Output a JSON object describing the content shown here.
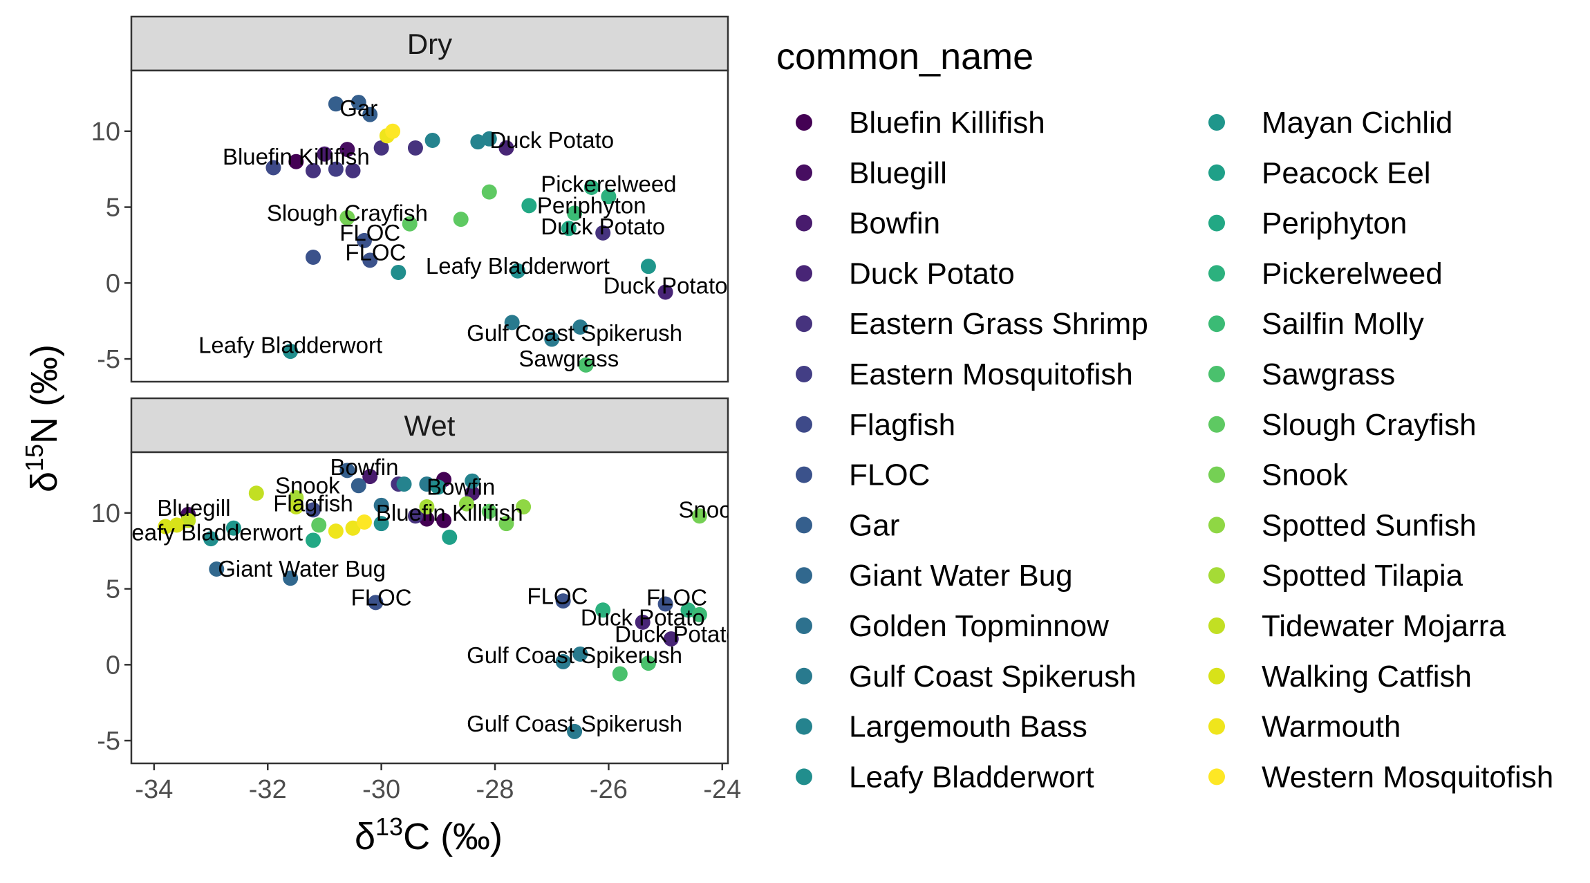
{
  "chart_data": {
    "type": "scatter",
    "title": "",
    "xlabel": "δ13C (‰)",
    "ylabel": "δ15N (‰)",
    "xlim": [
      -34.4,
      -23.9
    ],
    "ylim": [
      -6.5,
      14.0
    ],
    "x_ticks": [
      -34,
      -32,
      -30,
      -28,
      -26,
      -24
    ],
    "x_tick_labels": [
      "-34",
      "-32",
      "-30",
      "-28",
      "-26",
      "-24"
    ],
    "y_ticks": [
      -5,
      0,
      5,
      10
    ],
    "y_tick_labels": [
      "-5",
      "0",
      "5",
      "10"
    ],
    "grid": false,
    "legend_title": "common_name",
    "legend_position": "right",
    "colors": {
      "Bluefin Killifish": "#440154",
      "Bluegill": "#470E61",
      "Bowfin": "#481B6D",
      "Duck Potato": "#482576",
      "Eastern Grass Shrimp": "#46337E",
      "Eastern Mosquitofish": "#433E85",
      "Flagfish": "#3E4A89",
      "FLOC": "#3B528B",
      "Gar": "#355F8D",
      "Giant Water Bug": "#31688E",
      "Golden Topminnow": "#2D718E",
      "Gulf Coast Spikerush": "#297A8E",
      "Largemouth Bass": "#25838E",
      "Leafy Bladderwort": "#218E8D",
      "Mayan Cichlid": "#1F968B",
      "Peacock Eel": "#1FA088",
      "Periphyton": "#22A884",
      "Pickerelweed": "#2CB17E",
      "Sailfin Molly": "#3BBB75",
      "Sawgrass": "#4AC16D",
      "Slough Crayfish": "#5EC962",
      "Snook": "#75D054",
      "Spotted Sunfish": "#8FD744",
      "Spotted Tilapia": "#A5DB36",
      "Tidewater Mojarra": "#C2DF23",
      "Walking Catfish": "#D8E219",
      "Warmouth": "#EFE51C",
      "Western Mosquitofish": "#FDE725"
    },
    "legend_entries": [
      "Bluefin Killifish",
      "Bluegill",
      "Bowfin",
      "Duck Potato",
      "Eastern Grass Shrimp",
      "Eastern Mosquitofish",
      "Flagfish",
      "FLOC",
      "Gar",
      "Giant Water Bug",
      "Golden Topminnow",
      "Gulf Coast Spikerush",
      "Largemouth Bass",
      "Leafy Bladderwort",
      "Mayan Cichlid",
      "Peacock Eel",
      "Periphyton",
      "Pickerelweed",
      "Sailfin Molly",
      "Sawgrass",
      "Slough Crayfish",
      "Snook",
      "Spotted Sunfish",
      "Spotted Tilapia",
      "Tidewater Mojarra",
      "Walking Catfish",
      "Warmouth",
      "Western Mosquitofish"
    ],
    "panels": [
      {
        "strip": "Dry",
        "points": [
          {
            "x": -31.5,
            "y": 8.0,
            "species": "Bluefin Killifish"
          },
          {
            "x": -30.6,
            "y": 8.8,
            "species": "Bluegill"
          },
          {
            "x": -31.0,
            "y": 8.5,
            "species": "Bowfin"
          },
          {
            "x": -25.0,
            "y": -0.6,
            "species": "Duck Potato"
          },
          {
            "x": -27.8,
            "y": 8.9,
            "species": "Duck Potato"
          },
          {
            "x": -31.2,
            "y": 7.4,
            "species": "Eastern Grass Shrimp"
          },
          {
            "x": -30.5,
            "y": 7.4,
            "species": "Eastern Grass Shrimp"
          },
          {
            "x": -30.0,
            "y": 8.9,
            "species": "Eastern Grass Shrimp"
          },
          {
            "x": -29.4,
            "y": 8.9,
            "species": "Eastern Grass Shrimp"
          },
          {
            "x": -26.1,
            "y": 3.3,
            "species": "Eastern Grass Shrimp"
          },
          {
            "x": -30.8,
            "y": 7.5,
            "species": "Eastern Mosquitofish"
          },
          {
            "x": -31.9,
            "y": 7.6,
            "species": "Flagfish"
          },
          {
            "x": -30.3,
            "y": 2.8,
            "species": "FLOC"
          },
          {
            "x": -30.2,
            "y": 1.5,
            "species": "FLOC"
          },
          {
            "x": -31.2,
            "y": 1.7,
            "species": "FLOC"
          },
          {
            "x": -30.8,
            "y": 11.8,
            "species": "Gar"
          },
          {
            "x": -30.4,
            "y": 11.9,
            "species": "Gar"
          },
          {
            "x": -30.2,
            "y": 11.1,
            "species": "Gar"
          },
          {
            "x": -27.7,
            "y": -2.6,
            "species": "Gulf Coast Spikerush"
          },
          {
            "x": -26.5,
            "y": -2.9,
            "species": "Gulf Coast Spikerush"
          },
          {
            "x": -27.0,
            "y": -3.7,
            "species": "Gulf Coast Spikerush"
          },
          {
            "x": -28.3,
            "y": 9.3,
            "species": "Largemouth Bass"
          },
          {
            "x": -28.1,
            "y": 9.5,
            "species": "Largemouth Bass"
          },
          {
            "x": -29.1,
            "y": 9.4,
            "species": "Largemouth Bass"
          },
          {
            "x": -31.6,
            "y": -4.5,
            "species": "Leafy Bladderwort"
          },
          {
            "x": -29.7,
            "y": 0.7,
            "species": "Leafy Bladderwort"
          },
          {
            "x": -27.6,
            "y": 0.8,
            "species": "Leafy Bladderwort"
          },
          {
            "x": -25.3,
            "y": 1.1,
            "species": "Mayan Cichlid"
          },
          {
            "x": -27.4,
            "y": 5.1,
            "species": "Periphyton"
          },
          {
            "x": -26.7,
            "y": 3.6,
            "species": "Periphyton"
          },
          {
            "x": -26.3,
            "y": 6.3,
            "species": "Pickerelweed"
          },
          {
            "x": -26.0,
            "y": 5.7,
            "species": "Pickerelweed"
          },
          {
            "x": -26.6,
            "y": 4.6,
            "species": "Sailfin Molly"
          },
          {
            "x": -26.4,
            "y": -5.4,
            "species": "Sawgrass"
          },
          {
            "x": -29.5,
            "y": 3.9,
            "species": "Slough Crayfish"
          },
          {
            "x": -28.6,
            "y": 4.2,
            "species": "Slough Crayfish"
          },
          {
            "x": -28.1,
            "y": 6.0,
            "species": "Slough Crayfish"
          },
          {
            "x": -30.6,
            "y": 4.3,
            "species": "Snook"
          },
          {
            "x": -29.9,
            "y": 9.7,
            "species": "Warmouth"
          },
          {
            "x": -29.8,
            "y": 10.0,
            "species": "Western Mosquitofish"
          }
        ],
        "labels": [
          {
            "x": -30.4,
            "y": 11.5,
            "text": "Gar"
          },
          {
            "x": -27.0,
            "y": 9.4,
            "text": "Duck Potato"
          },
          {
            "x": -31.5,
            "y": 8.3,
            "text": "Bluefin Killifish"
          },
          {
            "x": -26.0,
            "y": 6.5,
            "text": "Pickerelweed"
          },
          {
            "x": -30.6,
            "y": 4.6,
            "text": "Slough Crayfish"
          },
          {
            "x": -26.3,
            "y": 5.1,
            "text": "Periphyton"
          },
          {
            "x": -26.1,
            "y": 3.7,
            "text": "Duck Potato"
          },
          {
            "x": -30.2,
            "y": 3.3,
            "text": "FLOC"
          },
          {
            "x": -30.1,
            "y": 2.0,
            "text": "FLOC"
          },
          {
            "x": -27.6,
            "y": 1.1,
            "text": "Leafy Bladderwort"
          },
          {
            "x": -25.0,
            "y": -0.2,
            "text": "Duck Potato"
          },
          {
            "x": -26.6,
            "y": -3.3,
            "text": "Gulf Coast Spikerush"
          },
          {
            "x": -31.6,
            "y": -4.1,
            "text": "Leafy Bladderwort"
          },
          {
            "x": -26.7,
            "y": -5.0,
            "text": "Sawgrass"
          }
        ]
      },
      {
        "strip": "Wet",
        "points": [
          {
            "x": -28.9,
            "y": 12.2,
            "species": "Bluefin Killifish"
          },
          {
            "x": -29.2,
            "y": 9.6,
            "species": "Bluefin Killifish"
          },
          {
            "x": -28.9,
            "y": 9.5,
            "species": "Bluefin Killifish"
          },
          {
            "x": -33.4,
            "y": 9.9,
            "species": "Bluegill"
          },
          {
            "x": -30.2,
            "y": 12.4,
            "species": "Bowfin"
          },
          {
            "x": -28.4,
            "y": 11.3,
            "species": "Bowfin"
          },
          {
            "x": -25.4,
            "y": 2.8,
            "species": "Duck Potato"
          },
          {
            "x": -24.9,
            "y": 1.7,
            "species": "Duck Potato"
          },
          {
            "x": -29.4,
            "y": 9.8,
            "species": "Eastern Grass Shrimp"
          },
          {
            "x": -29.7,
            "y": 11.9,
            "species": "Eastern Grass Shrimp"
          },
          {
            "x": -31.2,
            "y": 10.2,
            "species": "Flagfish"
          },
          {
            "x": -30.1,
            "y": 4.1,
            "species": "FLOC"
          },
          {
            "x": -26.8,
            "y": 4.2,
            "species": "FLOC"
          },
          {
            "x": -25.0,
            "y": 4.0,
            "species": "FLOC"
          },
          {
            "x": -30.6,
            "y": 12.8,
            "species": "Gar"
          },
          {
            "x": -30.4,
            "y": 11.8,
            "species": "Gar"
          },
          {
            "x": -31.6,
            "y": 5.7,
            "species": "Giant Water Bug"
          },
          {
            "x": -32.9,
            "y": 6.3,
            "species": "Giant Water Bug"
          },
          {
            "x": -30.0,
            "y": 10.5,
            "species": "Golden Topminnow"
          },
          {
            "x": -29.2,
            "y": 11.9,
            "species": "Gulf Coast Spikerush"
          },
          {
            "x": -26.8,
            "y": 0.2,
            "species": "Gulf Coast Spikerush"
          },
          {
            "x": -26.5,
            "y": 0.7,
            "species": "Gulf Coast Spikerush"
          },
          {
            "x": -26.6,
            "y": -4.4,
            "species": "Gulf Coast Spikerush"
          },
          {
            "x": -28.4,
            "y": 12.1,
            "species": "Largemouth Bass"
          },
          {
            "x": -29.6,
            "y": 11.9,
            "species": "Largemouth Bass"
          },
          {
            "x": -33.0,
            "y": 8.3,
            "species": "Leafy Bladderwort"
          },
          {
            "x": -30.0,
            "y": 9.3,
            "species": "Leafy Bladderwort"
          },
          {
            "x": -29.0,
            "y": 11.7,
            "species": "Leafy Bladderwort"
          },
          {
            "x": -32.6,
            "y": 9.0,
            "species": "Mayan Cichlid"
          },
          {
            "x": -28.8,
            "y": 8.4,
            "species": "Peacock Eel"
          },
          {
            "x": -31.2,
            "y": 8.2,
            "species": "Periphyton"
          },
          {
            "x": -26.1,
            "y": 3.6,
            "species": "Pickerelweed"
          },
          {
            "x": -24.6,
            "y": 3.6,
            "species": "Pickerelweed"
          },
          {
            "x": -24.4,
            "y": 3.3,
            "species": "Sailfin Molly"
          },
          {
            "x": -25.8,
            "y": -0.6,
            "species": "Sawgrass"
          },
          {
            "x": -25.3,
            "y": 0.1,
            "species": "Sawgrass"
          },
          {
            "x": -28.1,
            "y": 10.1,
            "species": "Slough Crayfish"
          },
          {
            "x": -31.1,
            "y": 9.2,
            "species": "Slough Crayfish"
          },
          {
            "x": -27.8,
            "y": 9.3,
            "species": "Snook"
          },
          {
            "x": -24.4,
            "y": 9.8,
            "species": "Snook"
          },
          {
            "x": -27.5,
            "y": 10.4,
            "species": "Spotted Sunfish"
          },
          {
            "x": -28.5,
            "y": 10.6,
            "species": "Spotted Sunfish"
          },
          {
            "x": -31.5,
            "y": 11.0,
            "species": "Spotted Tilapia"
          },
          {
            "x": -29.2,
            "y": 10.4,
            "species": "Spotted Tilapia"
          },
          {
            "x": -31.5,
            "y": 10.4,
            "species": "Tidewater Mojarra"
          },
          {
            "x": -33.4,
            "y": 9.5,
            "species": "Tidewater Mojarra"
          },
          {
            "x": -32.2,
            "y": 11.3,
            "species": "Tidewater Mojarra"
          },
          {
            "x": -33.8,
            "y": 9.1,
            "species": "Walking Catfish"
          },
          {
            "x": -33.6,
            "y": 9.2,
            "species": "Walking Catfish"
          },
          {
            "x": -30.8,
            "y": 8.8,
            "species": "Warmouth"
          },
          {
            "x": -30.5,
            "y": 9.0,
            "species": "Warmouth"
          },
          {
            "x": -30.3,
            "y": 9.4,
            "species": "Western Mosquitofish"
          }
        ],
        "labels": [
          {
            "x": -30.3,
            "y": 13.0,
            "text": "Bowfin"
          },
          {
            "x": -28.6,
            "y": 11.7,
            "text": "Bowfin"
          },
          {
            "x": -31.3,
            "y": 11.8,
            "text": "Snook"
          },
          {
            "x": -33.3,
            "y": 10.3,
            "text": "Bluegill"
          },
          {
            "x": -31.2,
            "y": 10.6,
            "text": "Flagfish"
          },
          {
            "x": -28.8,
            "y": 10.0,
            "text": "Bluefin Killifish"
          },
          {
            "x": -24.2,
            "y": 10.2,
            "text": "Snook"
          },
          {
            "x": -33.0,
            "y": 8.7,
            "text": "Leafy Bladderwort"
          },
          {
            "x": -31.4,
            "y": 6.3,
            "text": "Giant Water Bug"
          },
          {
            "x": -30.0,
            "y": 4.4,
            "text": "FLOC"
          },
          {
            "x": -26.9,
            "y": 4.5,
            "text": "FLOC"
          },
          {
            "x": -24.8,
            "y": 4.4,
            "text": "FLOC"
          },
          {
            "x": -25.4,
            "y": 3.1,
            "text": "Duck Potato"
          },
          {
            "x": -24.8,
            "y": 2.0,
            "text": "Duck Potato"
          },
          {
            "x": -26.6,
            "y": 0.6,
            "text": "Gulf Coast Spikerush"
          },
          {
            "x": -26.6,
            "y": -3.9,
            "text": "Gulf Coast Spikerush"
          }
        ]
      }
    ]
  }
}
